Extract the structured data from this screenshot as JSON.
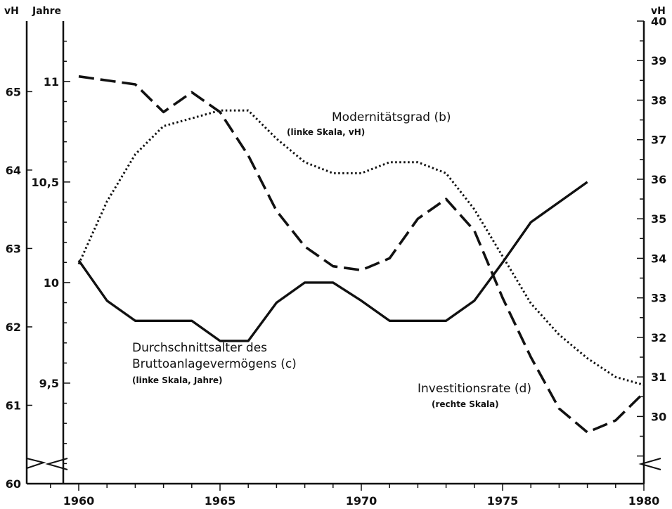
{
  "chart_data": {
    "type": "line",
    "x_range": [
      1958.5,
      1980
    ],
    "x_ticks": [
      1960,
      1965,
      1970,
      1975,
      1980
    ],
    "axes": {
      "left_outer": {
        "unit": "vH",
        "range": [
          60,
          65.9
        ],
        "ticks": [
          60,
          61,
          62,
          63,
          64,
          65
        ],
        "tick_labels": [
          "60",
          "61",
          "62",
          "63",
          "64",
          "65"
        ]
      },
      "left_inner": {
        "unit": "Jahre",
        "range": [
          9.0,
          11.3
        ],
        "ticks": [
          9.5,
          10,
          10.5,
          11
        ],
        "tick_labels": [
          "9,5",
          "10",
          "10,5",
          "11"
        ]
      },
      "right": {
        "unit": "vH",
        "range": [
          28.3,
          40
        ],
        "ticks": [
          30,
          31,
          32,
          33,
          34,
          35,
          36,
          37,
          38,
          39,
          40
        ],
        "tick_labels": [
          "30",
          "31",
          "32",
          "33",
          "34",
          "35",
          "36",
          "37",
          "38",
          "39",
          "40"
        ]
      }
    },
    "series": [
      {
        "axis": "left_inner",
        "style": "solid",
        "x": [
          1960,
          1961,
          1962,
          1963,
          1964,
          1965,
          1966,
          1967,
          1968,
          1969,
          1970,
          1971,
          1972,
          1973,
          1974,
          1975,
          1976,
          1977,
          1978
        ],
        "values": [
          10.11,
          9.91,
          9.81,
          9.81,
          9.81,
          9.71,
          9.71,
          9.9,
          10.0,
          10.0,
          9.91,
          9.81,
          9.81,
          9.81,
          9.91,
          10.1,
          10.3,
          10.4,
          10.5
        ]
      },
      {
        "axis": "right",
        "style": "dashed",
        "x": [
          1960,
          1961,
          1962,
          1963,
          1964,
          1965,
          1966,
          1967,
          1968,
          1969,
          1970,
          1971,
          1972,
          1973,
          1974,
          1975,
          1976,
          1977,
          1978,
          1979,
          1980
        ],
        "values": [
          38.6,
          38.5,
          38.4,
          37.7,
          38.2,
          37.7,
          36.6,
          35.2,
          34.3,
          33.8,
          33.7,
          34.0,
          35.0,
          35.5,
          34.7,
          33.0,
          31.5,
          30.2,
          29.6,
          29.9,
          30.6
        ]
      },
      {
        "axis": "left_outer",
        "style": "dotted",
        "x": [
          1960,
          1961,
          1962,
          1963,
          1964,
          1965,
          1966,
          1967,
          1968,
          1969,
          1970,
          1971,
          1972,
          1973,
          1974,
          1975,
          1976,
          1977,
          1978,
          1979,
          1980
        ],
        "values": [
          62.8,
          63.6,
          64.2,
          64.56,
          64.66,
          64.76,
          64.76,
          64.4,
          64.1,
          63.96,
          63.96,
          64.1,
          64.1,
          63.96,
          63.5,
          62.9,
          62.3,
          61.9,
          61.6,
          61.36,
          61.26
        ]
      }
    ],
    "annotations": {
      "modernitaet": {
        "title": "Modernitätsgrad (b)",
        "sub": "(linke Skala, vH)"
      },
      "durchschnitt": {
        "title1": "Durchschnittsalter des",
        "title2": "Bruttoanlagevermögens (c)",
        "sub": "(linke Skala, Jahre)"
      },
      "investition": {
        "title": "Investitionsrate (d)",
        "sub": "(rechte Skala)"
      }
    },
    "grid": false
  }
}
